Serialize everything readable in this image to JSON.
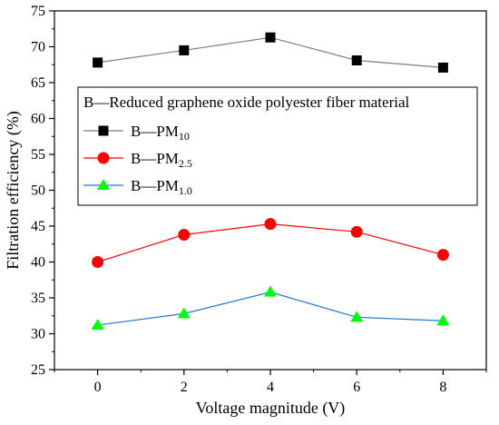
{
  "chart_data": {
    "type": "line",
    "title": "",
    "xlabel": "Voltage magnitude (V)",
    "ylabel": "Filtration efficiency (%)",
    "xlim": [
      -1,
      9
    ],
    "ylim": [
      25,
      75
    ],
    "x": [
      0,
      2,
      4,
      6,
      8
    ],
    "xticks": [
      "0",
      "2",
      "4",
      "6",
      "8"
    ],
    "yticks": [
      "25",
      "30",
      "35",
      "40",
      "45",
      "50",
      "55",
      "60",
      "65",
      "70",
      "75"
    ],
    "legend_title": "B—Reduced graphene oxide polyester fiber material",
    "legend_placement": "upper-left",
    "series": [
      {
        "name": "B—PM10",
        "name_main": "B—PM",
        "name_sub": "10",
        "color": "#7f7f7f",
        "marker_color": "#000000",
        "marker": "square",
        "values": [
          67.8,
          69.5,
          71.3,
          68.1,
          67.1
        ]
      },
      {
        "name": "B—PM2.5",
        "name_main": "B—PM",
        "name_sub": "2.5",
        "color": "#ff0000",
        "marker_color": "#ff0000",
        "marker": "circle",
        "values": [
          40.0,
          43.8,
          45.3,
          44.2,
          41.0
        ]
      },
      {
        "name": "B—PM1.0",
        "name_main": "B—PM",
        "name_sub": "1.0",
        "color": "#1f77d0",
        "marker_color": "#00ff00",
        "marker": "triangle",
        "values": [
          31.2,
          32.8,
          35.8,
          32.3,
          31.8
        ]
      }
    ]
  }
}
